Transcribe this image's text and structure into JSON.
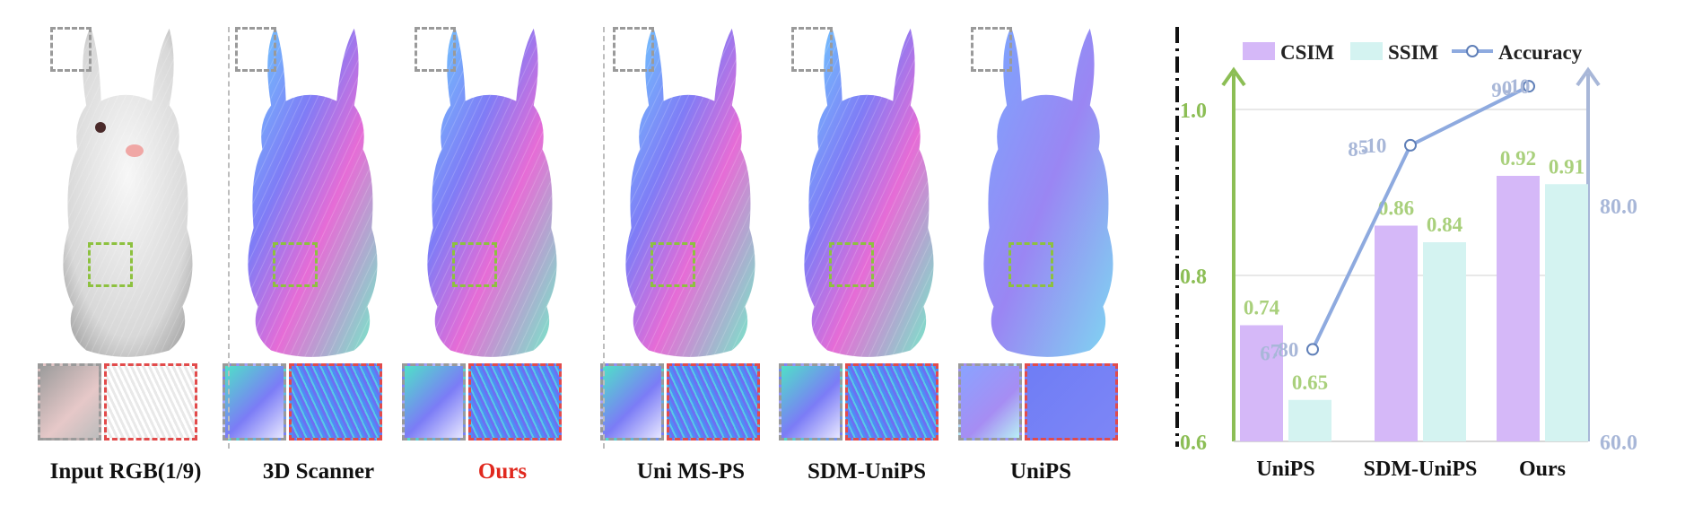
{
  "panels": [
    {
      "label": "Input RGB(1/9)",
      "style": "rgb",
      "highlight": false
    },
    {
      "label": "3D Scanner",
      "style": "normal",
      "highlight": false
    },
    {
      "label": "Ours",
      "style": "normal",
      "highlight": true
    },
    {
      "label": "Uni MS-PS",
      "style": "normal",
      "highlight": false
    },
    {
      "label": "SDM-UniPS",
      "style": "normal",
      "highlight": false
    },
    {
      "label": "UniPS",
      "style": "smooth",
      "highlight": false
    }
  ],
  "chart_data": {
    "type": "bar",
    "categories": [
      "UniPS",
      "SDM-UniPS",
      "Ours"
    ],
    "series": [
      {
        "name": "CSIM",
        "kind": "bar",
        "axis": "left",
        "color": "#d5b8f8",
        "values": [
          0.74,
          0.86,
          0.92
        ],
        "labels": [
          "0.74",
          "0.86",
          "0.92"
        ]
      },
      {
        "name": "SSIM",
        "kind": "bar",
        "axis": "left",
        "color": "#d4f3f1",
        "values": [
          0.65,
          0.84,
          0.91
        ],
        "labels": [
          "0.65",
          "0.84",
          "0.91"
        ]
      },
      {
        "name": "Accuracy",
        "kind": "line",
        "axis": "right",
        "color": "#8eaadf",
        "values": [
          67.8,
          85.1,
          90.1
        ],
        "labels": [
          "67.80",
          "85.10",
          "90.10"
        ]
      }
    ],
    "left_axis": {
      "ylim": [
        0.6,
        1.05
      ],
      "ticks": [
        "0.6",
        "0.8",
        "1.0"
      ],
      "color": "#8cbe55"
    },
    "right_axis": {
      "ylim": [
        60,
        100
      ],
      "ticks": [
        "60.0",
        "80.0"
      ],
      "color": "#a8b7d8"
    },
    "grid": true,
    "legend_position": "top"
  }
}
